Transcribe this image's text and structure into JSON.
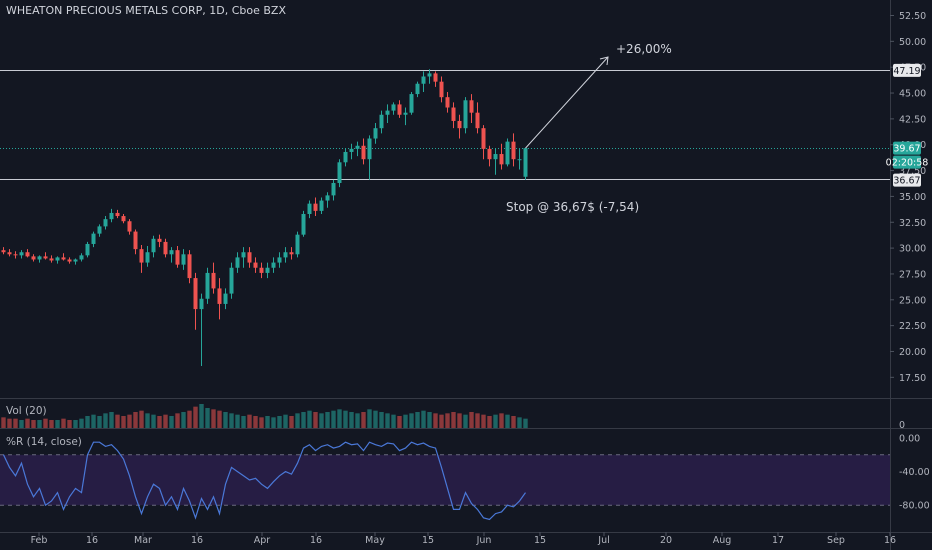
{
  "header": {
    "title": "WHEATON PRECIOUS METALS CORP, 1D, Cboe BZX"
  },
  "indicators": {
    "volume_label": "Vol (20)",
    "wr_label": "%R (14, close)"
  },
  "annotations": {
    "target": "+26,00%",
    "stop": "Stop @ 36,67$ (-7,54)"
  },
  "badges": {
    "resistance": "47.19",
    "current": "39.67",
    "countdown": "02:20:58",
    "stop": "36.67"
  },
  "colors": {
    "up": "#26a69a",
    "down": "#ef5350",
    "background": "#131722",
    "wr_line": "#4a78d8",
    "wr_band": "#2a1f4a",
    "text": "#b2b5be"
  },
  "chart_data": {
    "type": "candlestick",
    "instrument": "WHEATON PRECIOUS METALS CORP",
    "interval": "1D",
    "exchange": "Cboe BZX",
    "price_ticks": [
      "52.50",
      "50.00",
      "47.50",
      "45.00",
      "42.50",
      "40.00",
      "37.50",
      "35.00",
      "32.50",
      "30.00",
      "27.50",
      "25.00",
      "22.50",
      "20.00",
      "17.50"
    ],
    "price_range": [
      15.5,
      54
    ],
    "volume_ticks": [
      "0"
    ],
    "wr_ticks": [
      "0.00",
      "-40.00",
      "-80.00"
    ],
    "wr_levels": [
      -20,
      -80
    ],
    "x_labels": [
      "Feb",
      "16",
      "Mar",
      "16",
      "Apr",
      "16",
      "May",
      "15",
      "Jun",
      "15",
      "Jul",
      "20",
      "Aug",
      "17",
      "Sep",
      "16"
    ],
    "levels": [
      {
        "name": "resistance",
        "price": 47.19
      },
      {
        "name": "current",
        "price": 39.67
      },
      {
        "name": "stop",
        "price": 36.67
      }
    ],
    "last_close": 39.67,
    "target_gain": "+26,00%",
    "stop_label": "Stop @ 36,67$ (-7,54)",
    "candles": [
      [
        29.8,
        30.1,
        29.4,
        29.6
      ],
      [
        29.6,
        29.9,
        29.2,
        29.4
      ],
      [
        29.4,
        29.7,
        29.0,
        29.3
      ],
      [
        29.3,
        29.8,
        29.0,
        29.6
      ],
      [
        29.6,
        29.9,
        29.1,
        29.2
      ],
      [
        29.2,
        29.4,
        28.7,
        28.9
      ],
      [
        28.9,
        29.3,
        28.6,
        29.2
      ],
      [
        29.2,
        29.6,
        28.9,
        29.0
      ],
      [
        29.0,
        29.3,
        28.6,
        28.8
      ],
      [
        28.8,
        29.2,
        28.5,
        29.1
      ],
      [
        29.1,
        29.5,
        28.8,
        28.9
      ],
      [
        28.9,
        29.1,
        28.5,
        28.7
      ],
      [
        28.7,
        29.0,
        28.4,
        28.9
      ],
      [
        28.9,
        29.5,
        28.7,
        29.3
      ],
      [
        29.3,
        30.6,
        29.1,
        30.4
      ],
      [
        30.4,
        31.6,
        30.1,
        31.4
      ],
      [
        31.4,
        32.3,
        31.1,
        32.1
      ],
      [
        32.1,
        33.1,
        31.8,
        32.8
      ],
      [
        32.8,
        33.8,
        32.5,
        33.4
      ],
      [
        33.4,
        33.7,
        32.9,
        33.1
      ],
      [
        33.1,
        33.3,
        32.4,
        32.6
      ],
      [
        32.6,
        32.8,
        31.3,
        31.6
      ],
      [
        31.6,
        31.8,
        29.4,
        29.9
      ],
      [
        29.9,
        30.3,
        27.6,
        28.6
      ],
      [
        28.6,
        30.2,
        28.2,
        29.6
      ],
      [
        29.6,
        31.2,
        29.1,
        30.9
      ],
      [
        30.9,
        31.3,
        30.1,
        30.6
      ],
      [
        30.6,
        30.9,
        29.1,
        29.4
      ],
      [
        29.4,
        30.1,
        28.6,
        29.8
      ],
      [
        29.8,
        30.2,
        28.1,
        28.4
      ],
      [
        28.4,
        29.9,
        27.9,
        29.4
      ],
      [
        29.4,
        29.8,
        26.6,
        27.1
      ],
      [
        27.1,
        27.6,
        22.1,
        24.1
      ],
      [
        24.1,
        25.6,
        18.6,
        25.1
      ],
      [
        25.1,
        28.1,
        24.6,
        27.6
      ],
      [
        27.6,
        28.6,
        25.6,
        26.1
      ],
      [
        26.1,
        27.1,
        23.1,
        24.6
      ],
      [
        24.6,
        26.1,
        24.1,
        25.6
      ],
      [
        25.6,
        28.6,
        25.1,
        28.1
      ],
      [
        28.1,
        29.6,
        27.6,
        29.1
      ],
      [
        29.1,
        30.1,
        28.1,
        29.6
      ],
      [
        29.6,
        30.1,
        28.1,
        28.6
      ],
      [
        28.6,
        29.1,
        27.6,
        28.1
      ],
      [
        28.1,
        28.6,
        27.1,
        27.6
      ],
      [
        27.6,
        28.6,
        27.1,
        28.1
      ],
      [
        28.1,
        29.1,
        27.6,
        28.6
      ],
      [
        28.6,
        29.6,
        28.1,
        29.1
      ],
      [
        29.1,
        30.1,
        28.6,
        29.6
      ],
      [
        29.6,
        30.1,
        28.9,
        29.4
      ],
      [
        29.4,
        31.6,
        29.1,
        31.3
      ],
      [
        31.3,
        33.6,
        31.1,
        33.3
      ],
      [
        33.3,
        34.6,
        32.9,
        34.3
      ],
      [
        34.3,
        34.9,
        33.1,
        33.6
      ],
      [
        33.6,
        34.9,
        33.3,
        34.6
      ],
      [
        34.6,
        35.4,
        33.9,
        35.1
      ],
      [
        35.1,
        36.6,
        34.6,
        36.3
      ],
      [
        36.3,
        38.6,
        35.9,
        38.3
      ],
      [
        38.3,
        39.6,
        37.9,
        39.3
      ],
      [
        39.3,
        40.1,
        38.6,
        39.6
      ],
      [
        39.6,
        40.3,
        38.9,
        39.9
      ],
      [
        39.9,
        40.6,
        38.1,
        38.6
      ],
      [
        38.6,
        40.9,
        36.6,
        40.6
      ],
      [
        40.6,
        42.1,
        40.1,
        41.6
      ],
      [
        41.6,
        43.3,
        41.1,
        42.9
      ],
      [
        42.9,
        43.9,
        42.1,
        43.3
      ],
      [
        43.3,
        44.1,
        42.9,
        43.9
      ],
      [
        43.9,
        44.3,
        42.6,
        42.9
      ],
      [
        42.9,
        43.6,
        41.9,
        43.1
      ],
      [
        43.1,
        45.1,
        42.9,
        44.9
      ],
      [
        44.9,
        46.1,
        44.6,
        45.9
      ],
      [
        45.9,
        47.1,
        45.1,
        46.6
      ],
      [
        46.6,
        47.3,
        45.9,
        46.9
      ],
      [
        46.9,
        47.1,
        45.6,
        46.1
      ],
      [
        46.1,
        46.6,
        44.1,
        44.6
      ],
      [
        44.6,
        45.1,
        43.1,
        43.6
      ],
      [
        43.6,
        44.1,
        41.6,
        42.3
      ],
      [
        42.3,
        42.9,
        40.6,
        41.6
      ],
      [
        41.6,
        44.6,
        41.1,
        44.3
      ],
      [
        44.3,
        44.9,
        42.1,
        43.1
      ],
      [
        43.1,
        44.1,
        41.1,
        41.6
      ],
      [
        41.6,
        41.9,
        38.6,
        39.6
      ],
      [
        39.6,
        39.9,
        37.9,
        38.6
      ],
      [
        38.6,
        39.6,
        37.1,
        39.1
      ],
      [
        39.1,
        40.1,
        37.6,
        38.1
      ],
      [
        38.1,
        40.6,
        37.9,
        40.3
      ],
      [
        40.3,
        41.1,
        37.9,
        38.6
      ],
      [
        38.6,
        39.6,
        37.6,
        38.6
      ],
      [
        36.9,
        39.7,
        36.6,
        39.67
      ]
    ],
    "volume": [
      8,
      7,
      7,
      6,
      7,
      6,
      6,
      7,
      6,
      6,
      7,
      6,
      6,
      7,
      9,
      10,
      9,
      11,
      12,
      10,
      9,
      10,
      12,
      13,
      11,
      10,
      9,
      10,
      9,
      11,
      12,
      13,
      16,
      18,
      15,
      14,
      13,
      12,
      11,
      10,
      9,
      10,
      9,
      8,
      9,
      8,
      9,
      10,
      9,
      11,
      12,
      13,
      12,
      11,
      12,
      13,
      14,
      13,
      12,
      11,
      12,
      14,
      13,
      12,
      11,
      10,
      9,
      10,
      11,
      12,
      13,
      12,
      11,
      10,
      11,
      12,
      11,
      10,
      12,
      11,
      10,
      9,
      10,
      11,
      10,
      9,
      8,
      7
    ],
    "williams_r": [
      -20,
      -35,
      -45,
      -30,
      -55,
      -70,
      -60,
      -80,
      -75,
      -65,
      -85,
      -70,
      -60,
      -65,
      -20,
      -5,
      -5,
      -10,
      -8,
      -15,
      -25,
      -45,
      -70,
      -90,
      -70,
      -55,
      -60,
      -80,
      -70,
      -85,
      -60,
      -75,
      -95,
      -72,
      -85,
      -70,
      -90,
      -55,
      -35,
      -40,
      -45,
      -50,
      -48,
      -55,
      -60,
      -52,
      -45,
      -40,
      -43,
      -30,
      -12,
      -8,
      -15,
      -10,
      -8,
      -12,
      -10,
      -5,
      -8,
      -7,
      -15,
      -5,
      -8,
      -10,
      -6,
      -7,
      -15,
      -12,
      -5,
      -8,
      -6,
      -10,
      -12,
      -35,
      -60,
      -85,
      -85,
      -65,
      -78,
      -85,
      -95,
      -97,
      -90,
      -88,
      -80,
      -82,
      -75,
      -65
    ]
  }
}
